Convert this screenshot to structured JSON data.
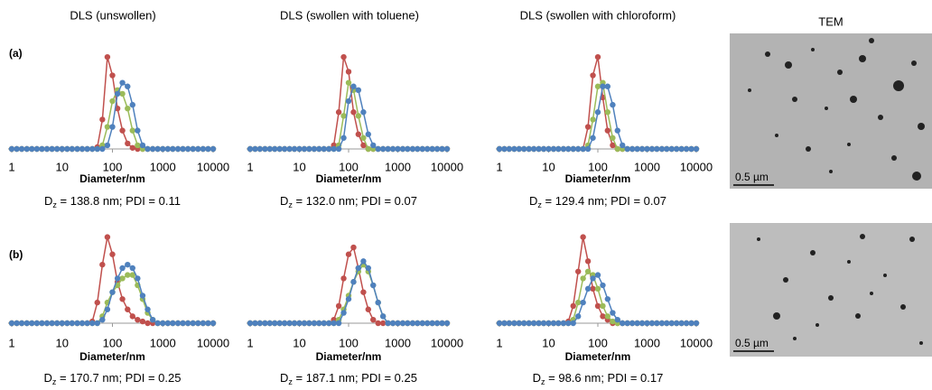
{
  "figure": {
    "column_titles": [
      "DLS (unswollen)",
      "DLS (swollen with toluene)",
      "DLS (swollen with chloroform)",
      "TEM"
    ],
    "row_labels": [
      "(a)",
      "(b)"
    ],
    "scale_labels": [
      "0.5 µm",
      "0.5 µm"
    ]
  },
  "chart_data": [
    {
      "type": "line",
      "x_scale": "log",
      "xlabel": "Diameter/nm",
      "xlim": [
        1,
        10000
      ],
      "xticks": [
        1,
        10,
        100,
        1000,
        10000
      ],
      "ylim": [
        0,
        27
      ],
      "caption": {
        "symbol": "D",
        "subscript": "z",
        "text": " = 138.8 nm; PDI = 0.11"
      },
      "x": [
        1,
        1.26,
        1.58,
        2,
        2.51,
        3.16,
        3.98,
        5.01,
        6.31,
        7.94,
        10,
        12.6,
        15.8,
        20,
        25.1,
        31.6,
        39.8,
        50.1,
        63.1,
        79.4,
        100,
        126,
        158,
        200,
        251,
        316,
        398,
        501,
        631,
        794,
        1000,
        1260,
        1580,
        2000,
        2510,
        3160,
        3980,
        5010,
        6310,
        7940,
        10000
      ],
      "series": [
        {
          "color": "#c0504d",
          "values": [
            0,
            0,
            0,
            0,
            0,
            0,
            0,
            0,
            0,
            0,
            0,
            0,
            0,
            0,
            0,
            0,
            0,
            0.5,
            8,
            25,
            20,
            11,
            5,
            1.5,
            0.3,
            0,
            0,
            0,
            0,
            0,
            0,
            0,
            0,
            0,
            0,
            0,
            0,
            0,
            0,
            0,
            0
          ]
        },
        {
          "color": "#9bbb59",
          "values": [
            0,
            0,
            0,
            0,
            0,
            0,
            0,
            0,
            0,
            0,
            0,
            0,
            0,
            0,
            0,
            0,
            0,
            0,
            1,
            6,
            13,
            16,
            15,
            11,
            5,
            1,
            0,
            0,
            0,
            0,
            0,
            0,
            0,
            0,
            0,
            0,
            0,
            0,
            0,
            0,
            0
          ]
        },
        {
          "color": "#4f81bd",
          "values": [
            0,
            0,
            0,
            0,
            0,
            0,
            0,
            0,
            0,
            0,
            0,
            0,
            0,
            0,
            0,
            0,
            0,
            0,
            0,
            1,
            6,
            15,
            18,
            17,
            12,
            5,
            1,
            0,
            0,
            0,
            0,
            0,
            0,
            0,
            0,
            0,
            0,
            0,
            0,
            0,
            0
          ]
        }
      ]
    },
    {
      "type": "line",
      "x_scale": "log",
      "xlabel": "Diameter/nm",
      "xlim": [
        1,
        10000
      ],
      "xticks": [
        1,
        10,
        100,
        1000,
        10000
      ],
      "ylim": [
        0,
        27
      ],
      "caption": {
        "symbol": "D",
        "subscript": "z",
        "text": " = 132.0 nm; PDI = 0.07"
      },
      "x": [
        1,
        1.26,
        1.58,
        2,
        2.51,
        3.16,
        3.98,
        5.01,
        6.31,
        7.94,
        10,
        12.6,
        15.8,
        20,
        25.1,
        31.6,
        39.8,
        50.1,
        63.1,
        79.4,
        100,
        126,
        158,
        200,
        251,
        316,
        398,
        501,
        631,
        794,
        1000,
        1260,
        1580,
        2000,
        2510,
        3160,
        3980,
        5010,
        6310,
        7940,
        10000
      ],
      "series": [
        {
          "color": "#c0504d",
          "values": [
            0,
            0,
            0,
            0,
            0,
            0,
            0,
            0,
            0,
            0,
            0,
            0,
            0,
            0,
            0,
            0,
            0,
            1,
            10,
            25,
            21,
            10,
            4,
            1,
            0,
            0,
            0,
            0,
            0,
            0,
            0,
            0,
            0,
            0,
            0,
            0,
            0,
            0,
            0,
            0,
            0
          ]
        },
        {
          "color": "#9bbb59",
          "values": [
            0,
            0,
            0,
            0,
            0,
            0,
            0,
            0,
            0,
            0,
            0,
            0,
            0,
            0,
            0,
            0,
            0,
            0,
            1,
            9,
            18,
            16,
            9,
            3,
            0,
            0,
            0,
            0,
            0,
            0,
            0,
            0,
            0,
            0,
            0,
            0,
            0,
            0,
            0,
            0,
            0
          ]
        },
        {
          "color": "#4f81bd",
          "values": [
            0,
            0,
            0,
            0,
            0,
            0,
            0,
            0,
            0,
            0,
            0,
            0,
            0,
            0,
            0,
            0,
            0,
            0,
            0,
            3,
            13,
            17,
            16,
            10,
            4,
            1,
            0,
            0,
            0,
            0,
            0,
            0,
            0,
            0,
            0,
            0,
            0,
            0,
            0,
            0,
            0
          ]
        }
      ]
    },
    {
      "type": "line",
      "x_scale": "log",
      "xlabel": "Diameter/nm",
      "xlim": [
        1,
        10000
      ],
      "xticks": [
        1,
        10,
        100,
        1000,
        10000
      ],
      "ylim": [
        0,
        27
      ],
      "caption": {
        "symbol": "D",
        "subscript": "z",
        "text": " = 129.4 nm; PDI = 0.07"
      },
      "x": [
        1,
        1.26,
        1.58,
        2,
        2.51,
        3.16,
        3.98,
        5.01,
        6.31,
        7.94,
        10,
        12.6,
        15.8,
        20,
        25.1,
        31.6,
        39.8,
        50.1,
        63.1,
        79.4,
        100,
        126,
        158,
        200,
        251,
        316,
        398,
        501,
        631,
        794,
        1000,
        1260,
        1580,
        2000,
        2510,
        3160,
        3980,
        5010,
        6310,
        7940,
        10000
      ],
      "series": [
        {
          "color": "#c0504d",
          "values": [
            0,
            0,
            0,
            0,
            0,
            0,
            0,
            0,
            0,
            0,
            0,
            0,
            0,
            0,
            0,
            0,
            0,
            0,
            6,
            20,
            25,
            14,
            5,
            1,
            0,
            0,
            0,
            0,
            0,
            0,
            0,
            0,
            0,
            0,
            0,
            0,
            0,
            0,
            0,
            0,
            0
          ]
        },
        {
          "color": "#9bbb59",
          "values": [
            0,
            0,
            0,
            0,
            0,
            0,
            0,
            0,
            0,
            0,
            0,
            0,
            0,
            0,
            0,
            0,
            0,
            0,
            1,
            8,
            17,
            18,
            10,
            3,
            0,
            0,
            0,
            0,
            0,
            0,
            0,
            0,
            0,
            0,
            0,
            0,
            0,
            0,
            0,
            0,
            0
          ]
        },
        {
          "color": "#4f81bd",
          "values": [
            0,
            0,
            0,
            0,
            0,
            0,
            0,
            0,
            0,
            0,
            0,
            0,
            0,
            0,
            0,
            0,
            0,
            0,
            0,
            3,
            10,
            17,
            17,
            12,
            5,
            1,
            0,
            0,
            0,
            0,
            0,
            0,
            0,
            0,
            0,
            0,
            0,
            0,
            0,
            0,
            0
          ]
        }
      ]
    },
    {
      "type": "line",
      "x_scale": "log",
      "xlabel": "Diameter/nm",
      "xlim": [
        1,
        10000
      ],
      "xticks": [
        1,
        10,
        100,
        1000,
        10000
      ],
      "ylim": [
        0,
        27
      ],
      "caption": {
        "symbol": "D",
        "subscript": "z",
        "text": " = 170.7 nm; PDI = 0.25"
      },
      "x": [
        1,
        1.26,
        1.58,
        2,
        2.51,
        3.16,
        3.98,
        5.01,
        6.31,
        7.94,
        10,
        12.6,
        15.8,
        20,
        25.1,
        31.6,
        39.8,
        50.1,
        63.1,
        79.4,
        100,
        126,
        158,
        200,
        251,
        316,
        398,
        501,
        631,
        794,
        1000,
        1260,
        1580,
        2000,
        2510,
        3160,
        3980,
        5010,
        6310,
        7940,
        10000
      ],
      "series": [
        {
          "color": "#c0504d",
          "values": [
            0,
            0,
            0,
            0,
            0,
            0,
            0,
            0,
            0,
            0,
            0,
            0,
            0,
            0,
            0,
            0,
            0.5,
            6,
            17,
            25,
            20,
            12,
            7,
            4,
            2,
            1,
            0.5,
            0,
            0,
            0,
            0,
            0,
            0,
            0,
            0,
            0,
            0,
            0,
            0,
            0,
            0
          ]
        },
        {
          "color": "#9bbb59",
          "values": [
            0,
            0,
            0,
            0,
            0,
            0,
            0,
            0,
            0,
            0,
            0,
            0,
            0,
            0,
            0,
            0,
            0,
            0,
            2,
            6,
            9,
            11,
            13,
            14,
            14,
            11,
            7,
            3,
            1,
            0,
            0,
            0,
            0,
            0,
            0,
            0,
            0,
            0,
            0,
            0,
            0
          ]
        },
        {
          "color": "#4f81bd",
          "values": [
            0,
            0,
            0,
            0,
            0,
            0,
            0,
            0,
            0,
            0,
            0,
            0,
            0,
            0,
            0,
            0,
            0,
            0,
            1,
            4,
            9,
            13,
            16,
            17,
            16,
            13,
            8,
            4,
            1,
            0,
            0,
            0,
            0,
            0,
            0,
            0,
            0,
            0,
            0,
            0,
            0
          ]
        }
      ]
    },
    {
      "type": "line",
      "x_scale": "log",
      "xlabel": "Diameter/nm",
      "xlim": [
        1,
        10000
      ],
      "xticks": [
        1,
        10,
        100,
        1000,
        10000
      ],
      "ylim": [
        0,
        27
      ],
      "caption": {
        "symbol": "D",
        "subscript": "z",
        "text": " = 187.1 nm; PDI = 0.25"
      },
      "x": [
        1,
        1.26,
        1.58,
        2,
        2.51,
        3.16,
        3.98,
        5.01,
        6.31,
        7.94,
        10,
        12.6,
        15.8,
        20,
        25.1,
        31.6,
        39.8,
        50.1,
        63.1,
        79.4,
        100,
        126,
        158,
        200,
        251,
        316,
        398,
        501,
        631,
        794,
        1000,
        1260,
        1580,
        2000,
        2510,
        3160,
        3980,
        5010,
        6310,
        7940,
        10000
      ],
      "series": [
        {
          "color": "#c0504d",
          "values": [
            0,
            0,
            0,
            0,
            0,
            0,
            0,
            0,
            0,
            0,
            0,
            0,
            0,
            0,
            0,
            0,
            0,
            1,
            5,
            13,
            20,
            22,
            16,
            9,
            4,
            1,
            0,
            0,
            0,
            0,
            0,
            0,
            0,
            0,
            0,
            0,
            0,
            0,
            0,
            0,
            0
          ]
        },
        {
          "color": "#9bbb59",
          "values": [
            0,
            0,
            0,
            0,
            0,
            0,
            0,
            0,
            0,
            0,
            0,
            0,
            0,
            0,
            0,
            0,
            0,
            0,
            1,
            4,
            8,
            12,
            15,
            17,
            15,
            11,
            6,
            2,
            0,
            0,
            0,
            0,
            0,
            0,
            0,
            0,
            0,
            0,
            0,
            0,
            0
          ]
        },
        {
          "color": "#4f81bd",
          "values": [
            0,
            0,
            0,
            0,
            0,
            0,
            0,
            0,
            0,
            0,
            0,
            0,
            0,
            0,
            0,
            0,
            0,
            0,
            0,
            3,
            7,
            12,
            16,
            18,
            16,
            11,
            6,
            2,
            0,
            0,
            0,
            0,
            0,
            0,
            0,
            0,
            0,
            0,
            0,
            0,
            0
          ]
        }
      ]
    },
    {
      "type": "line",
      "x_scale": "log",
      "xlabel": "Diameter/nm",
      "xlim": [
        1,
        10000
      ],
      "xticks": [
        1,
        10,
        100,
        1000,
        10000
      ],
      "ylim": [
        0,
        27
      ],
      "caption": {
        "symbol": "D",
        "subscript": "z",
        "text": " = 98.6 nm; PDI = 0.17"
      },
      "x": [
        1,
        1.26,
        1.58,
        2,
        2.51,
        3.16,
        3.98,
        5.01,
        6.31,
        7.94,
        10,
        12.6,
        15.8,
        20,
        25.1,
        31.6,
        39.8,
        50.1,
        63.1,
        79.4,
        100,
        126,
        158,
        200,
        251,
        316,
        398,
        501,
        631,
        794,
        1000,
        1260,
        1580,
        2000,
        2510,
        3160,
        3980,
        5010,
        6310,
        7940,
        10000
      ],
      "series": [
        {
          "color": "#c0504d",
          "values": [
            0,
            0,
            0,
            0,
            0,
            0,
            0,
            0,
            0,
            0,
            0,
            0,
            0,
            0,
            0.5,
            5,
            15,
            25,
            18,
            10,
            5,
            2,
            1,
            0,
            0,
            0,
            0,
            0,
            0,
            0,
            0,
            0,
            0,
            0,
            0,
            0,
            0,
            0,
            0,
            0,
            0
          ]
        },
        {
          "color": "#9bbb59",
          "values": [
            0,
            0,
            0,
            0,
            0,
            0,
            0,
            0,
            0,
            0,
            0,
            0,
            0,
            0,
            0,
            1,
            6,
            13,
            15,
            14,
            10,
            5,
            2,
            0.5,
            0,
            0,
            0,
            0,
            0,
            0,
            0,
            0,
            0,
            0,
            0,
            0,
            0,
            0,
            0,
            0,
            0
          ]
        },
        {
          "color": "#4f81bd",
          "values": [
            0,
            0,
            0,
            0,
            0,
            0,
            0,
            0,
            0,
            0,
            0,
            0,
            0,
            0,
            0,
            0,
            2,
            6,
            10,
            13,
            14,
            11,
            7,
            3,
            1,
            0,
            0,
            0,
            0,
            0,
            0,
            0,
            0,
            0,
            0,
            0,
            0,
            0,
            0,
            0,
            0
          ]
        }
      ]
    }
  ]
}
